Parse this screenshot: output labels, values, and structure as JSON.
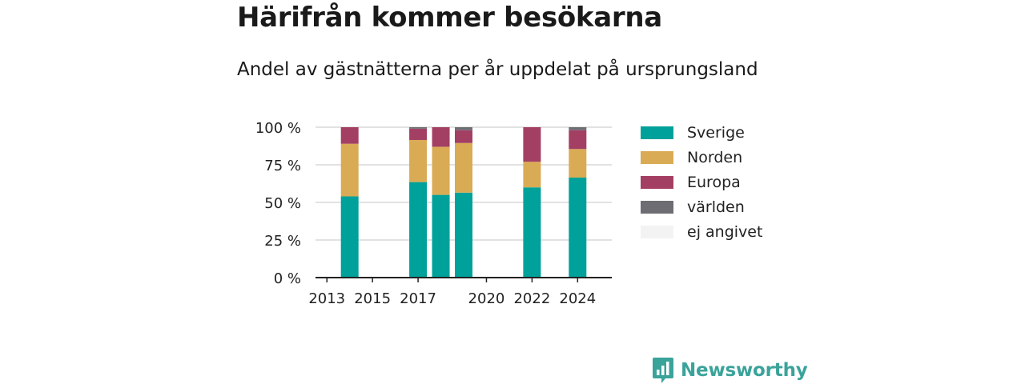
{
  "header": {
    "title": "Härifrån kommer besökarna",
    "subtitle": "Andel av gästnätterna per år uppdelat på ursprungsland"
  },
  "chart_data": {
    "type": "bar",
    "stacked": true,
    "x_ticks": [
      "2013",
      "2015",
      "2017",
      "2020",
      "2022",
      "2024"
    ],
    "y_ticks": [
      "0 %",
      "25 %",
      "50 %",
      "75 %",
      "100 %"
    ],
    "ylim": [
      0,
      100
    ],
    "xlim": [
      2012.5,
      2025.5
    ],
    "grid": true,
    "legend_position": "right",
    "years": [
      2014,
      2017,
      2018,
      2019,
      2022,
      2024
    ],
    "series": [
      {
        "name": "Sverige",
        "color": "#00a19a",
        "values": [
          54,
          63.5,
          55,
          56.5,
          60,
          66.5
        ]
      },
      {
        "name": "Norden",
        "color": "#d9ab54",
        "values": [
          35,
          28,
          32,
          33,
          17,
          19
        ]
      },
      {
        "name": "Europa",
        "color": "#a43f64",
        "values": [
          11,
          7.5,
          13,
          8.5,
          23,
          12.5
        ]
      },
      {
        "name": "världen",
        "color": "#6e6d73",
        "values": [
          0,
          1,
          0,
          2,
          0,
          2
        ]
      },
      {
        "name": "ej angivet",
        "color": "#f3f3f3",
        "values": [
          0,
          0,
          0,
          0,
          0,
          0
        ]
      }
    ]
  },
  "logo": {
    "text": "Newsworthy",
    "icon": "newsworthy-logo-icon"
  }
}
